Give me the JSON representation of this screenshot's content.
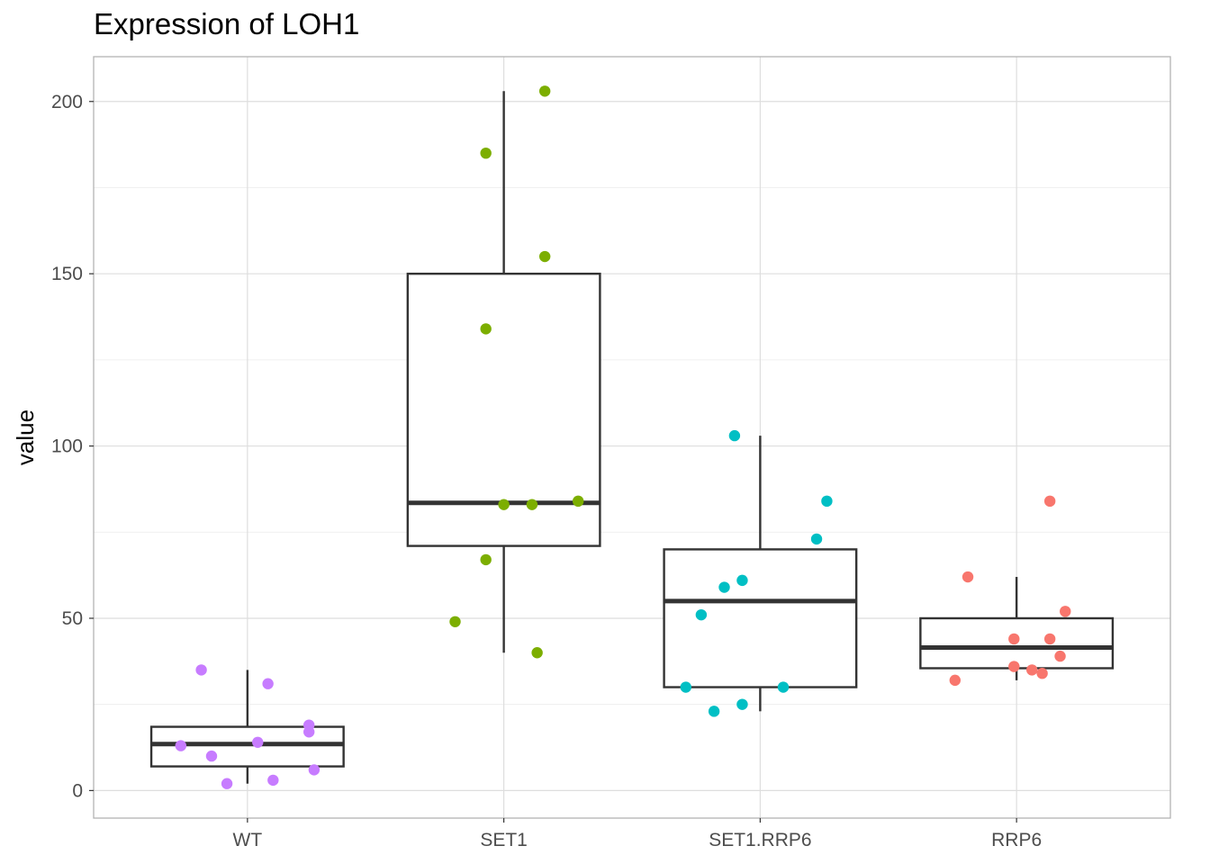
{
  "chart_data": {
    "type": "boxplot",
    "title": "Expression of LOH1",
    "xlabel": "",
    "ylabel": "value",
    "ylim": [
      -8,
      213
    ],
    "yticks": [
      0,
      50,
      100,
      150,
      200
    ],
    "grid": true,
    "legend": "none",
    "categories": [
      "WT",
      "SET1",
      "SET1.RRP6",
      "RRP6"
    ],
    "colors": [
      "#C77CFF",
      "#7CAE00",
      "#00BFC4",
      "#F8766D"
    ],
    "boxes": [
      {
        "category": "WT",
        "min": 2,
        "q1": 7,
        "median": 13.5,
        "q3": 18.5,
        "max": 35
      },
      {
        "category": "SET1",
        "min": 40,
        "q1": 71,
        "median": 83.5,
        "q3": 150,
        "max": 203
      },
      {
        "category": "SET1.RRP6",
        "min": 23,
        "q1": 30,
        "median": 55,
        "q3": 70,
        "max": 103
      },
      {
        "category": "RRP6",
        "min": 32,
        "q1": 35.5,
        "median": 41.5,
        "q3": 50,
        "max": 62
      }
    ],
    "points": [
      {
        "category": "WT",
        "jitter": [
          -0.26,
          -0.18,
          -0.14,
          -0.08,
          0.04,
          0.08,
          0.1,
          0.24,
          0.24,
          0.26
        ],
        "values": [
          13,
          35,
          10,
          2,
          14,
          31,
          3,
          17,
          19,
          6
        ]
      },
      {
        "category": "SET1",
        "jitter": [
          -0.19,
          -0.07,
          -0.07,
          -0.07,
          0.0,
          0.11,
          0.13,
          0.16,
          0.16,
          0.29
        ],
        "values": [
          49,
          185,
          134,
          67,
          83,
          83,
          40,
          203,
          155,
          84
        ]
      },
      {
        "category": "SET1.RRP6",
        "jitter": [
          -0.29,
          -0.23,
          -0.18,
          -0.14,
          -0.1,
          -0.07,
          -0.07,
          0.09,
          0.22,
          0.26
        ],
        "values": [
          30,
          51,
          23,
          59,
          103,
          61,
          25,
          30,
          73,
          84
        ]
      },
      {
        "category": "RRP6",
        "jitter": [
          -0.24,
          -0.19,
          -0.01,
          -0.01,
          0.06,
          0.1,
          0.13,
          0.13,
          0.17,
          0.19
        ],
        "values": [
          32,
          62,
          44,
          36,
          35,
          34,
          44,
          84,
          39,
          52
        ]
      }
    ]
  }
}
